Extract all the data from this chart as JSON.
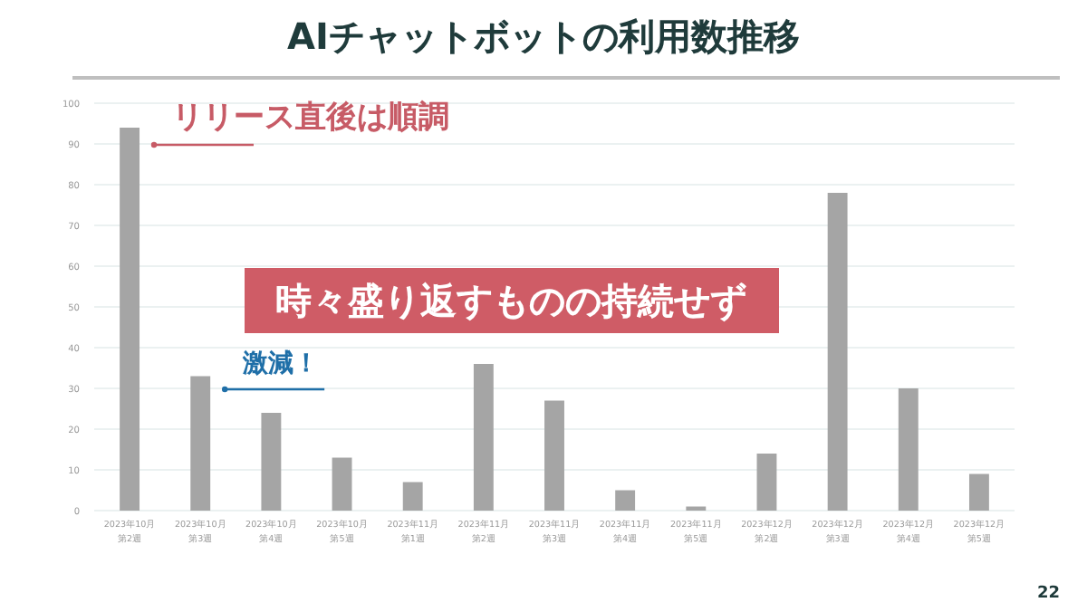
{
  "chart_data": {
    "type": "bar",
    "title": "AIチャットボットの利用数推移",
    "categories": [
      "2023年10月第2週",
      "2023年10月第3週",
      "2023年10月第4週",
      "2023年10月第5週",
      "2023年11月第1週",
      "2023年11月第2週",
      "2023年11月第3週",
      "2023年11月第4週",
      "2023年11月第5週",
      "2023年12月第2週",
      "2023年12月第3週",
      "2023年12月第4週",
      "2023年12月第5週"
    ],
    "values": [
      94,
      33,
      24,
      13,
      7,
      36,
      27,
      5,
      1,
      14,
      78,
      30,
      9
    ],
    "color": "#a5a5a5",
    "ylim": [
      0,
      100
    ],
    "yticks": [
      0,
      10,
      20,
      30,
      40,
      50,
      60,
      70,
      80,
      90,
      100
    ],
    "grid": "y",
    "annotations": [
      "リリース直後は順調",
      "激減！",
      "時々盛り返すものの持続せず",
      "22"
    ]
  }
}
